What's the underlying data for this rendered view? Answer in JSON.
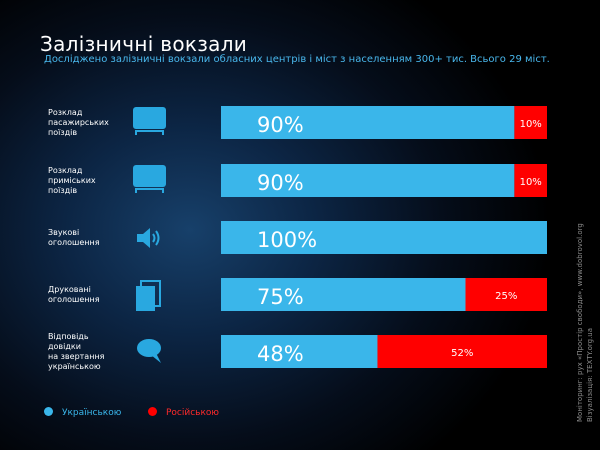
{
  "title": "Залізничні вокзали",
  "subtitle": "Досліджено залізничні вокзали  обласних центрів і міст з населенням 300+ тис. Всього 29 міст.",
  "colors": {
    "ukrainian": "#3ab6ea",
    "russian": "#ff0000",
    "icon": "#29a8e0",
    "subtitle": "#49b7ec"
  },
  "icons": [
    "monitor-icon",
    "monitor-icon",
    "speaker-icon",
    "documents-icon",
    "speech-bubble-icon"
  ],
  "chart_data": {
    "type": "bar",
    "orientation": "horizontal",
    "stacked": true,
    "categories": [
      [
        "Розклад",
        "пасажирських",
        "поїздів"
      ],
      [
        "Розклад",
        "приміських",
        "поїздів"
      ],
      [
        "Звукові",
        "оголошення"
      ],
      [
        "Друковані",
        "оголошення"
      ],
      [
        "Відповідь",
        "довідки",
        "на звертання",
        "українською"
      ]
    ],
    "series": [
      {
        "name": "Українською",
        "values": [
          90,
          90,
          100,
          75,
          48
        ],
        "labels": [
          "90%",
          "90%",
          "100%",
          "75%",
          "48%"
        ]
      },
      {
        "name": "Російською",
        "values": [
          10,
          10,
          0,
          25,
          52
        ],
        "labels": [
          "10%",
          "10%",
          "",
          "25%",
          "52%"
        ]
      }
    ],
    "xlim": [
      0,
      100
    ]
  },
  "legend": [
    {
      "label": "Українською",
      "color": "#3ab6ea"
    },
    {
      "label": "Російською",
      "color": "#ff0000"
    }
  ],
  "credits": {
    "monitoring_label": "Моніторинг:",
    "monitoring_text": "рух «Простір свободи», www.dobrovol.org",
    "visualization_label": "Візуалізація:",
    "visualization_text": "TEXTY.org.ua"
  }
}
